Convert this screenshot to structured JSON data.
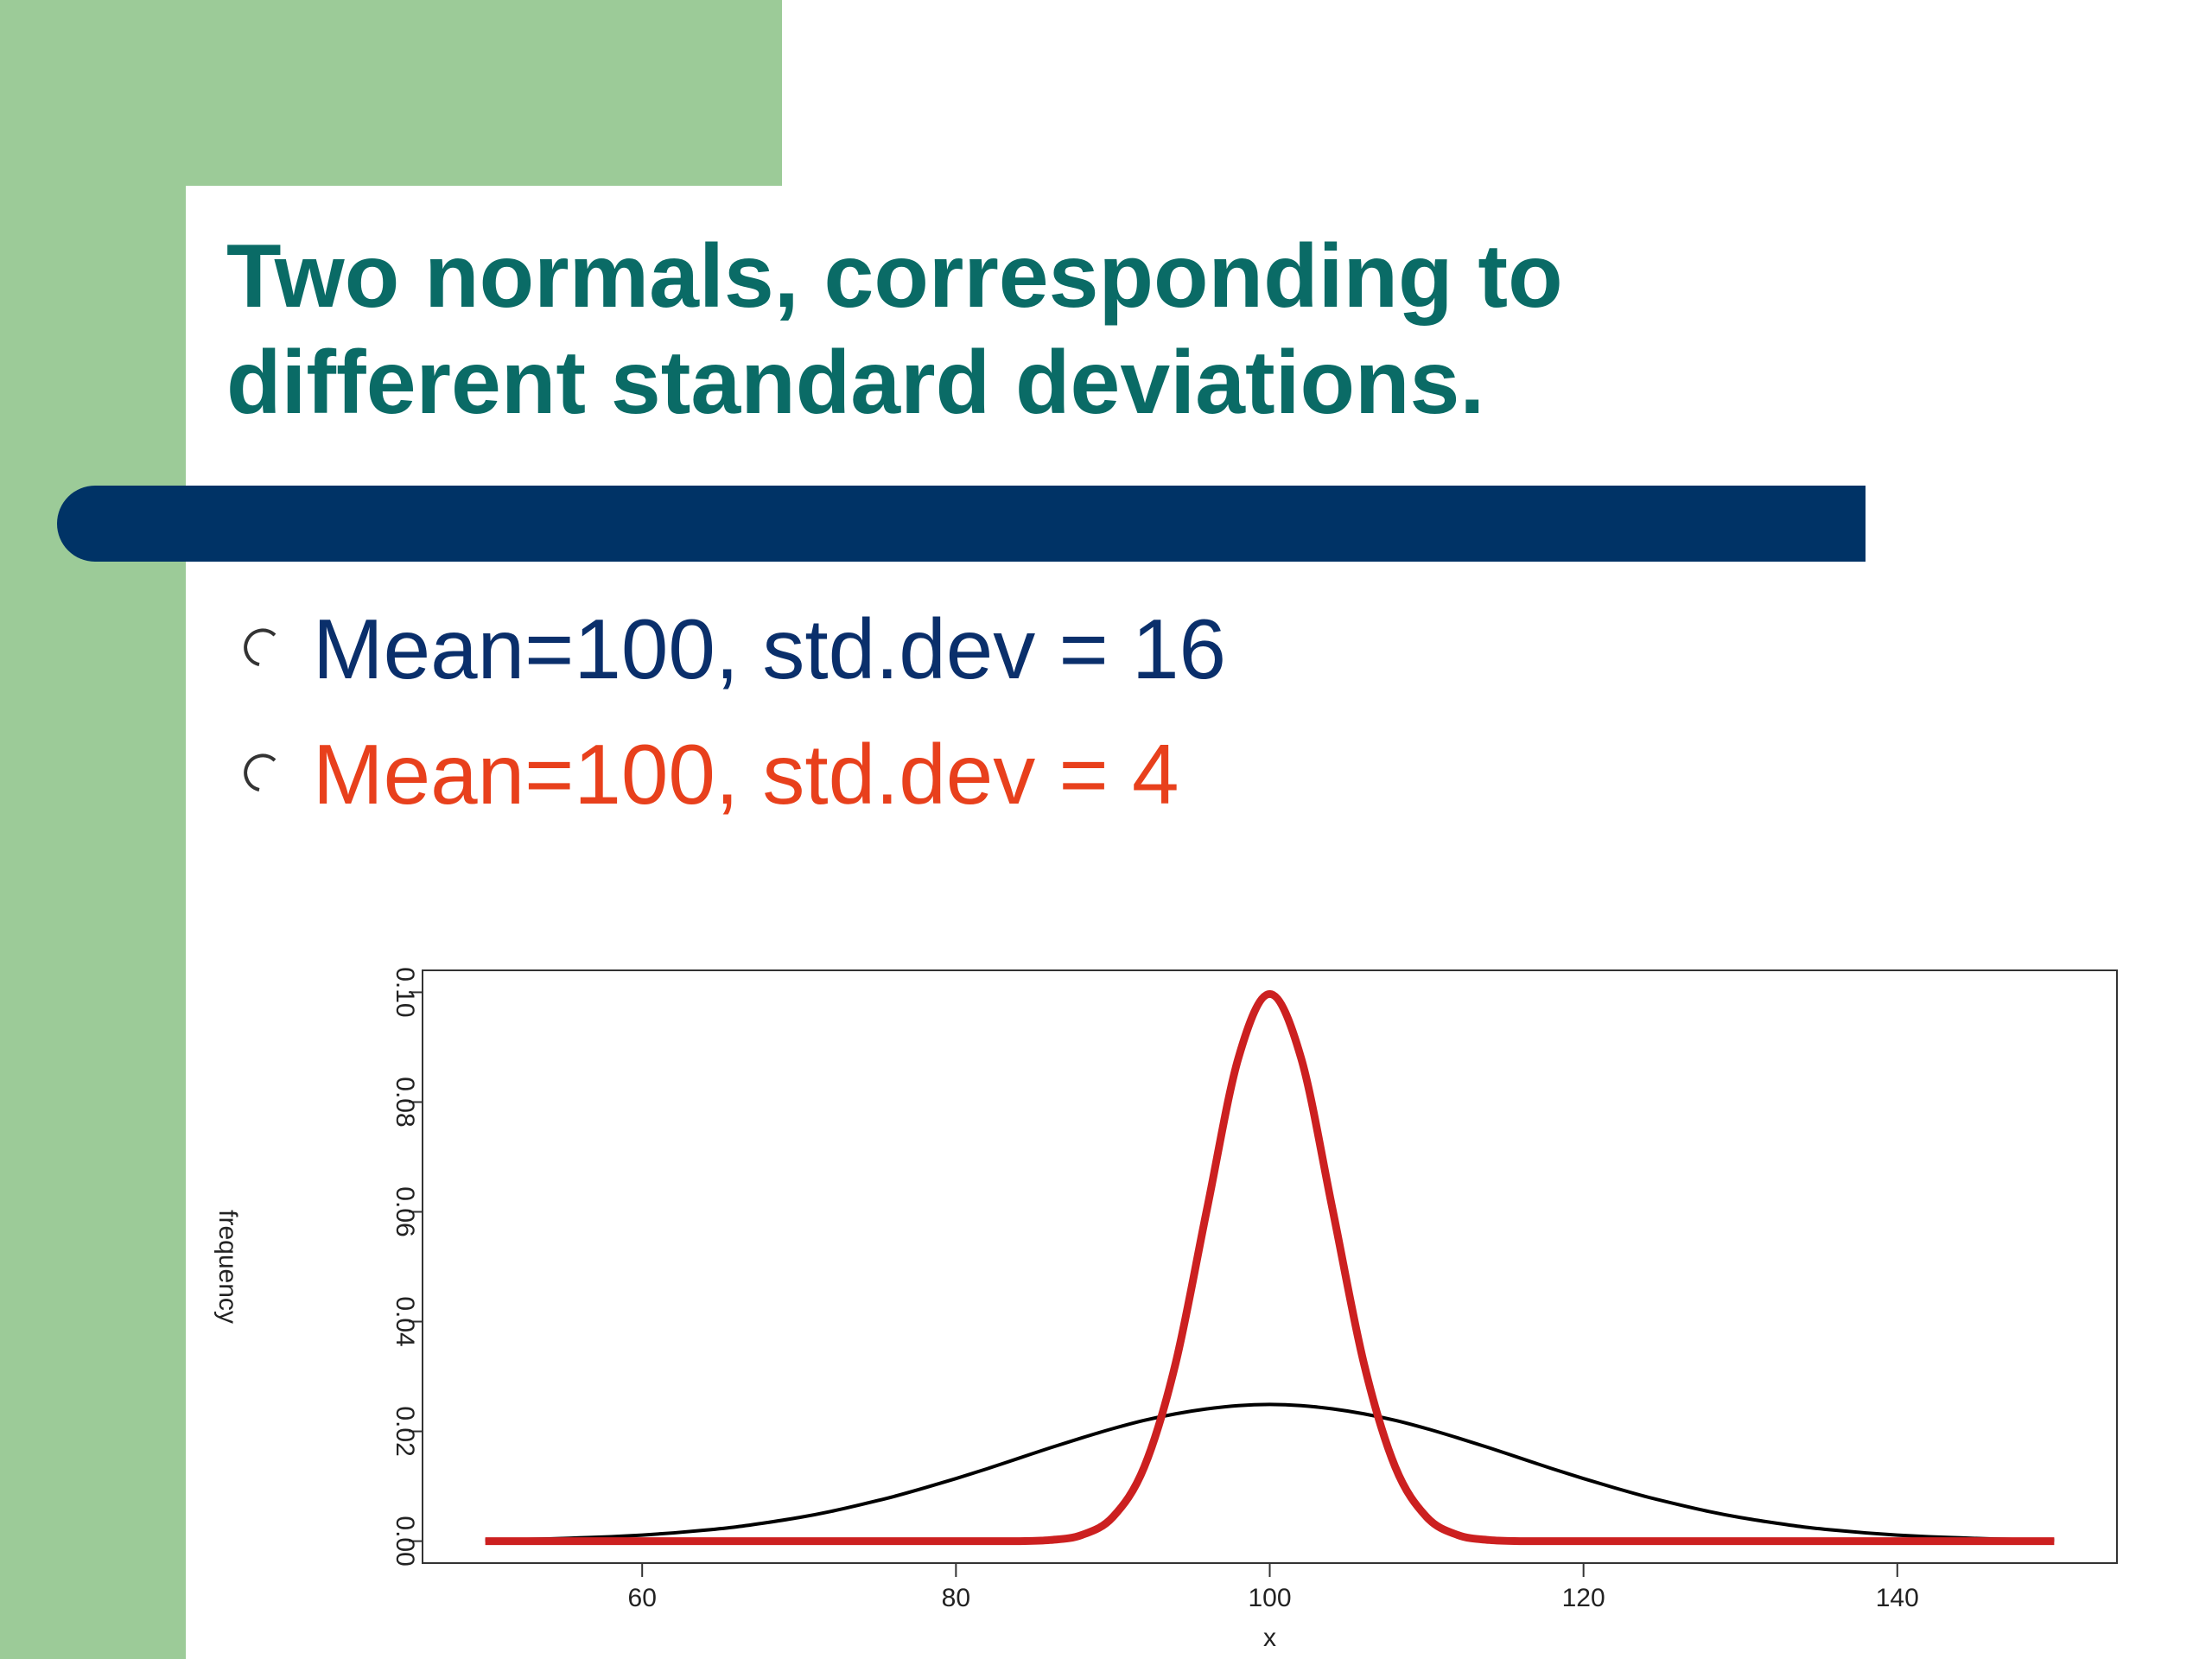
{
  "slide": {
    "title": [
      "Two normals, corresponding to",
      "different standard deviations."
    ],
    "bullets": [
      {
        "text": "Mean=100, std.dev = 16",
        "color": "#0a2f6b"
      },
      {
        "text": "Mean=100, std.dev = 4",
        "color": "#e8401c"
      }
    ]
  },
  "chart_data": {
    "type": "line",
    "xlabel": "x",
    "ylabel": "frequency",
    "x": [
      50,
      52,
      54,
      56,
      58,
      60,
      62,
      64,
      66,
      68,
      70,
      72,
      74,
      76,
      78,
      80,
      82,
      84,
      86,
      88,
      90,
      92,
      94,
      96,
      98,
      100,
      102,
      104,
      106,
      108,
      110,
      112,
      114,
      116,
      118,
      120,
      122,
      124,
      126,
      128,
      130,
      132,
      134,
      136,
      138,
      140,
      142,
      144,
      146,
      148,
      150
    ],
    "series": [
      {
        "name": "Mean=100, std.dev = 16",
        "color": "#000000",
        "values": [
          0.0002,
          0.0003,
          0.0004,
          0.0006,
          0.0008,
          0.0011,
          0.0015,
          0.002,
          0.0026,
          0.0034,
          0.0043,
          0.0054,
          0.0067,
          0.0081,
          0.0097,
          0.0114,
          0.0132,
          0.0151,
          0.017,
          0.0188,
          0.0205,
          0.022,
          0.0232,
          0.0241,
          0.0247,
          0.0249,
          0.0247,
          0.0241,
          0.0232,
          0.022,
          0.0205,
          0.0188,
          0.017,
          0.0151,
          0.0132,
          0.0114,
          0.0097,
          0.0081,
          0.0067,
          0.0054,
          0.0043,
          0.0034,
          0.0026,
          0.002,
          0.0015,
          0.0011,
          0.0008,
          0.0006,
          0.0004,
          0.0003,
          0.0002
        ]
      },
      {
        "name": "Mean=100, std.dev = 4",
        "color": "#cc2020",
        "values": [
          0,
          0,
          0,
          0,
          0,
          0,
          0,
          0,
          0,
          0,
          0,
          0,
          0,
          0,
          0,
          0,
          0,
          0,
          0.0002,
          0.0011,
          0.0044,
          0.0135,
          0.0324,
          0.0605,
          0.088,
          0.0997,
          0.088,
          0.0605,
          0.0324,
          0.0135,
          0.0044,
          0.0011,
          0.0002,
          0,
          0,
          0,
          0,
          0,
          0,
          0,
          0,
          0,
          0,
          0,
          0,
          0,
          0,
          0,
          0,
          0,
          0
        ]
      }
    ],
    "xlim": [
      46,
      154
    ],
    "xticks": [
      60,
      80,
      100,
      120,
      140
    ],
    "ylim": [
      -0.004,
      0.104
    ],
    "yticks": [
      {
        "value": 0,
        "label": "0.00"
      },
      {
        "value": 0.02,
        "label": "0.02"
      },
      {
        "value": 0.04,
        "label": "0.04"
      },
      {
        "value": 0.06,
        "label": "0.06"
      },
      {
        "value": 0.08,
        "label": "0.08"
      },
      {
        "value": 0.1,
        "label": "0.10"
      }
    ]
  }
}
